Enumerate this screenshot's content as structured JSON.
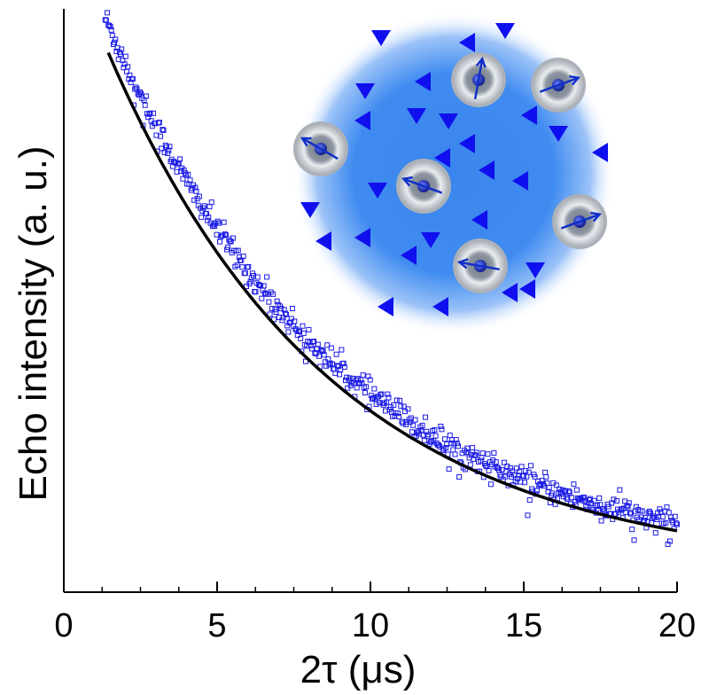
{
  "chart_data": {
    "type": "scatter",
    "title": "",
    "xlabel": "2τ (μs)",
    "ylabel": "Echo intensity (a. u.)",
    "xlim": [
      0,
      20
    ],
    "ylim": [
      0,
      1
    ],
    "x_ticks": [
      "0",
      "5",
      "10",
      "15",
      "20"
    ],
    "x_minor_step": 1.25,
    "y_ticks": [],
    "grid": false,
    "legend": "none",
    "series": [
      {
        "kind": "points",
        "marker": "open-square",
        "color": "#1a1ae6",
        "x_start": 1.35,
        "x_end": 20,
        "count": 560,
        "trend": {
          "type": "exponential",
          "offset": 0.035,
          "amplitude": 0.95,
          "decay_us": 7.6
        },
        "noise_sd": 0.012
      },
      {
        "kind": "fit",
        "color": "#000000",
        "x_start": 1.45,
        "x_end": 20,
        "function": {
          "type": "exponential",
          "offset": 0.035,
          "amplitude": 0.89,
          "decay_us": 7.3
        }
      }
    ],
    "inset_illustration": {
      "sphere_color": "#3b86ee",
      "dopant_marker_color": "#1010ee",
      "spin_color": "#1030c8"
    }
  }
}
